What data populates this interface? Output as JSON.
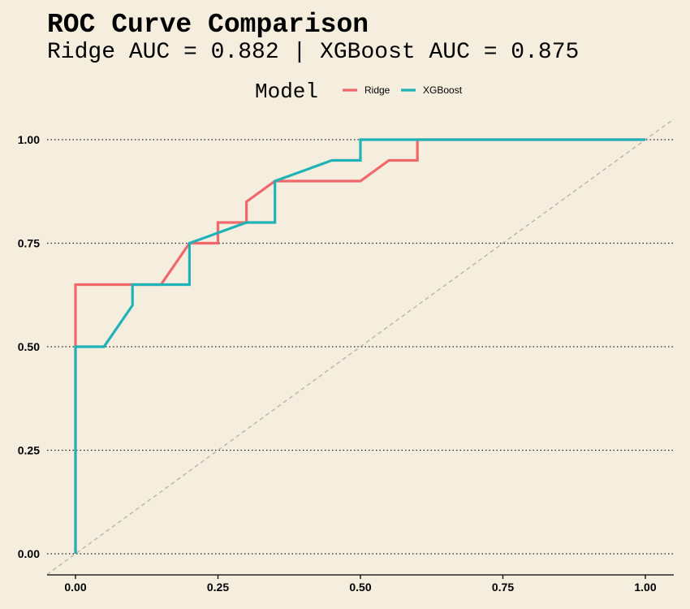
{
  "chart_data": {
    "type": "line",
    "title": "ROC Curve Comparison",
    "subtitle": "Ridge AUC = 0.882 | XGBoost AUC = 0.875",
    "xlabel": "",
    "ylabel": "",
    "xlim": [
      0,
      1
    ],
    "ylim": [
      0,
      1
    ],
    "x_ticks": [
      "0.00",
      "0.25",
      "0.50",
      "0.75",
      "1.00"
    ],
    "y_ticks": [
      "0.00",
      "0.25",
      "0.50",
      "0.75",
      "1.00"
    ],
    "grid": "horizontal dotted",
    "legend": {
      "title": "Model",
      "position": "top"
    },
    "diagonal_reference": true,
    "series": [
      {
        "name": "Ridge",
        "color": "#f0686b",
        "points": [
          [
            0,
            0
          ],
          [
            0,
            0.5
          ],
          [
            0,
            0.65
          ],
          [
            0.1,
            0.65
          ],
          [
            0.15,
            0.65
          ],
          [
            0.2,
            0.75
          ],
          [
            0.25,
            0.75
          ],
          [
            0.25,
            0.8
          ],
          [
            0.3,
            0.8
          ],
          [
            0.3,
            0.85
          ],
          [
            0.35,
            0.9
          ],
          [
            0.5,
            0.9
          ],
          [
            0.55,
            0.95
          ],
          [
            0.6,
            0.95
          ],
          [
            0.6,
            1.0
          ],
          [
            1.0,
            1.0
          ]
        ]
      },
      {
        "name": "XGBoost",
        "color": "#1fb3b7",
        "points": [
          [
            0,
            0
          ],
          [
            0,
            0.5
          ],
          [
            0.05,
            0.5
          ],
          [
            0.1,
            0.6
          ],
          [
            0.1,
            0.65
          ],
          [
            0.2,
            0.65
          ],
          [
            0.2,
            0.75
          ],
          [
            0.3,
            0.8
          ],
          [
            0.35,
            0.8
          ],
          [
            0.35,
            0.9
          ],
          [
            0.45,
            0.95
          ],
          [
            0.5,
            0.95
          ],
          [
            0.5,
            1.0
          ],
          [
            1.0,
            1.0
          ]
        ]
      }
    ]
  }
}
